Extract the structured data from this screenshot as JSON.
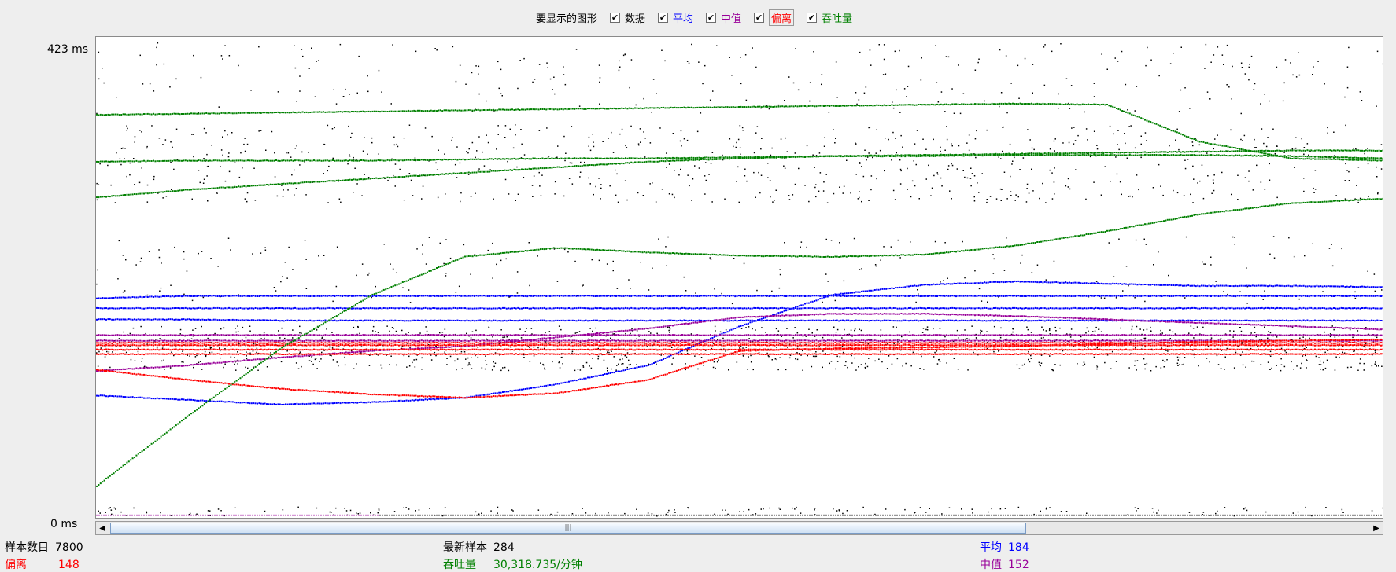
{
  "legend": {
    "title": "要显示的图形",
    "items": [
      {
        "key": "data",
        "label": "数据",
        "color": "#000000",
        "checked": "✔"
      },
      {
        "key": "average",
        "label": "平均",
        "color": "#0000ff",
        "checked": "✔"
      },
      {
        "key": "median",
        "label": "中值",
        "color": "#990099",
        "checked": "✔"
      },
      {
        "key": "deviation",
        "label": "偏离",
        "color": "#ff0000",
        "checked": "✔",
        "focused": true
      },
      {
        "key": "throughput",
        "label": "吞吐量",
        "color": "#008000",
        "checked": "✔"
      }
    ]
  },
  "scrollbar": {
    "left_arrow": "◀",
    "right_arrow": "▶",
    "grip": "|||"
  },
  "stats": {
    "samples_label": "样本数目",
    "samples_value": "7800",
    "latest_label": "最新样本",
    "latest_value": "284",
    "average_label": "平均",
    "average_value": "184",
    "deviation_label": "偏离",
    "deviation_value": "148",
    "throughput_label": "吞吐量",
    "throughput_value": "30,318.735/分钟",
    "median_label": "中值",
    "median_value": "152"
  },
  "chart_data": {
    "type": "scatter",
    "y_tick_labels": [
      "423  ms",
      "0  ms"
    ],
    "ylim": [
      0,
      423
    ],
    "x": [
      0,
      10,
      20,
      40,
      60,
      80,
      100
    ],
    "series": [
      {
        "name": "平均",
        "color": "#0000ff",
        "lines": [
          [
            108,
            104,
            100,
            102,
            106,
            118,
            135,
            170,
            198,
            207,
            210,
            208,
            206,
            206,
            205
          ],
          [
            195,
            197,
            197,
            197,
            197,
            197,
            197,
            197,
            197,
            197,
            197,
            197,
            197,
            197,
            197
          ],
          [
            186,
            186,
            186,
            186,
            186,
            186,
            186,
            186,
            186,
            186,
            186,
            186,
            186,
            186,
            186
          ],
          [
            176,
            176,
            175,
            175,
            175,
            175,
            175,
            175,
            175,
            175,
            175,
            175,
            175,
            175,
            175
          ]
        ]
      },
      {
        "name": "中值",
        "color": "#990099",
        "lines": [
          [
            162,
            162,
            162,
            162,
            162,
            162,
            162,
            162,
            162,
            162,
            162,
            162,
            162,
            162,
            162
          ],
          [
            157,
            157,
            157,
            157,
            157,
            157,
            157,
            157,
            157,
            157,
            157,
            157,
            157,
            157,
            157
          ],
          [
            130,
            135,
            142,
            148,
            152,
            160,
            168,
            178,
            181,
            181,
            179,
            176,
            173,
            170,
            167
          ]
        ]
      },
      {
        "name": "偏离",
        "color": "#ff0000",
        "lines": [
          [
            131,
            122,
            114,
            109,
            106,
            110,
            122,
            148,
            150,
            151,
            152,
            154,
            156,
            157,
            158
          ],
          [
            149,
            149,
            149,
            149,
            149,
            149,
            149,
            149,
            149,
            149,
            149,
            149,
            149,
            149,
            149
          ],
          [
            153,
            153,
            153,
            153,
            153,
            153,
            153,
            153,
            153,
            153,
            153,
            153,
            153,
            153,
            153
          ],
          [
            155,
            155,
            155,
            155,
            155,
            155,
            155,
            155,
            155,
            155,
            155,
            155,
            155,
            155,
            155
          ],
          [
            145,
            145,
            145,
            145,
            145,
            145,
            145,
            145,
            145,
            145,
            145,
            145,
            145,
            145,
            145
          ]
        ]
      },
      {
        "name": "吞吐量",
        "color": "#008000",
        "lines": [
          [
            27,
            90,
            150,
            198,
            232,
            240,
            236,
            233,
            232,
            234,
            242,
            255,
            270,
            280,
            284
          ],
          [
            359,
            360,
            361,
            362,
            363,
            364,
            365,
            366,
            367,
            368,
            369,
            368,
            335,
            320,
            318
          ],
          [
            317,
            318,
            318,
            318,
            319,
            320,
            320,
            321,
            322,
            322,
            323,
            323,
            323,
            322,
            320
          ],
          [
            285,
            292,
            297,
            302,
            307,
            312,
            317,
            320,
            322,
            323,
            324,
            325,
            326,
            327,
            327
          ]
        ]
      },
      {
        "name": "数据",
        "color": "#000000"
      }
    ]
  }
}
